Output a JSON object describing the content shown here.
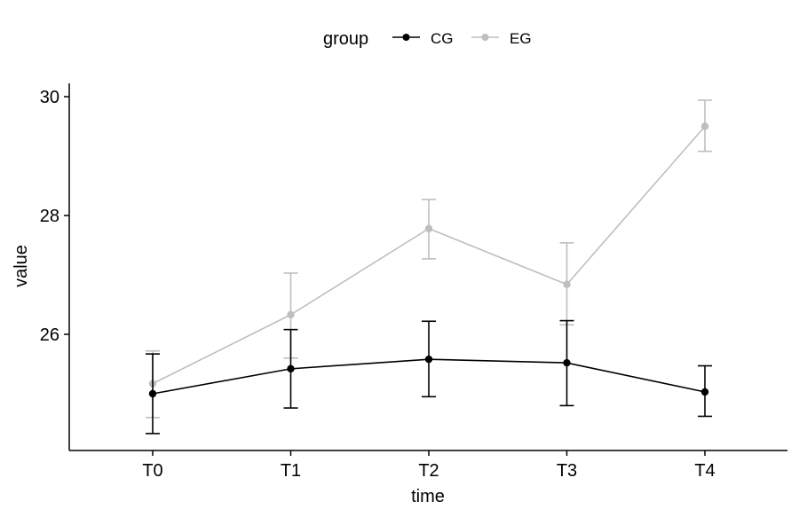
{
  "chart_data": {
    "type": "line",
    "title": "",
    "xlabel": "time",
    "ylabel": "value",
    "categories": [
      "T0",
      "T1",
      "T2",
      "T3",
      "T4"
    ],
    "ylim": [
      24.0,
      30.3
    ],
    "yticks": [
      26,
      28,
      30
    ],
    "grid": false,
    "legend": {
      "title": "group",
      "placement": "top"
    },
    "series": [
      {
        "name": "CG",
        "color": "#000000",
        "values": [
          25.0,
          25.42,
          25.58,
          25.52,
          25.03
        ],
        "error_low": [
          24.33,
          24.76,
          24.95,
          24.8,
          24.62
        ],
        "error_high": [
          25.67,
          26.08,
          26.22,
          26.23,
          25.47
        ]
      },
      {
        "name": "EG",
        "color": "#bebebe",
        "values": [
          25.17,
          26.33,
          27.78,
          26.84,
          29.5
        ],
        "error_low": [
          24.6,
          25.6,
          27.27,
          26.16,
          29.08
        ],
        "error_high": [
          25.72,
          27.03,
          28.27,
          27.54,
          29.94
        ]
      }
    ]
  }
}
